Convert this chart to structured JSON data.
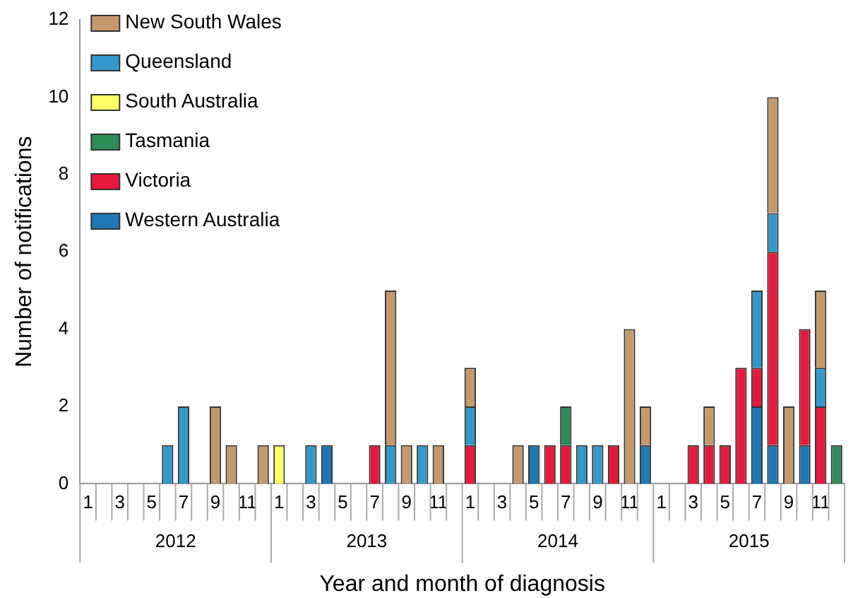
{
  "chart_data": {
    "type": "bar",
    "stacked": true,
    "xlabel": "Year and month of diagnosis",
    "ylabel": "Number of notifications",
    "categories": [
      "1",
      null,
      "3",
      null,
      "5",
      null,
      "7",
      null,
      "9",
      null,
      "11",
      null,
      "1",
      null,
      "3",
      null,
      "5",
      null,
      "7",
      null,
      "9",
      null,
      "11",
      null,
      "1",
      null,
      "3",
      null,
      "5",
      null,
      "7",
      null,
      "9",
      null,
      "11",
      null,
      "1",
      null,
      "3",
      null,
      "5",
      null,
      "7",
      null,
      "9",
      null,
      "11",
      null
    ],
    "annotations": [
      "2012",
      "2013",
      "2014",
      "2015"
    ],
    "series": [
      {
        "name": "Western Australia",
        "color": "#1f78b4",
        "values": [
          null,
          null,
          null,
          null,
          null,
          null,
          null,
          null,
          null,
          null,
          null,
          null,
          null,
          null,
          null,
          1,
          null,
          null,
          null,
          null,
          null,
          null,
          null,
          null,
          null,
          null,
          null,
          null,
          1,
          null,
          null,
          null,
          null,
          null,
          null,
          1,
          null,
          null,
          null,
          null,
          null,
          null,
          2,
          1,
          null,
          1,
          null,
          null
        ]
      },
      {
        "name": "Victoria",
        "color": "#e8183c",
        "values": [
          null,
          null,
          null,
          null,
          null,
          null,
          null,
          null,
          null,
          null,
          null,
          null,
          null,
          null,
          null,
          null,
          null,
          null,
          1,
          null,
          null,
          null,
          null,
          null,
          1,
          null,
          null,
          null,
          null,
          1,
          1,
          null,
          null,
          1,
          null,
          null,
          null,
          null,
          1,
          1,
          1,
          3,
          1,
          5,
          null,
          3,
          2,
          null
        ]
      },
      {
        "name": "Tasmania",
        "color": "#2e8b57",
        "values": [
          null,
          null,
          null,
          null,
          null,
          null,
          null,
          null,
          null,
          null,
          null,
          null,
          null,
          null,
          null,
          null,
          null,
          null,
          null,
          null,
          null,
          null,
          null,
          null,
          null,
          null,
          null,
          null,
          null,
          null,
          1,
          null,
          null,
          null,
          null,
          null,
          null,
          null,
          null,
          null,
          null,
          null,
          null,
          null,
          null,
          null,
          null,
          1
        ]
      },
      {
        "name": "South Australia",
        "color": "#ffff66",
        "values": [
          null,
          null,
          null,
          null,
          null,
          null,
          null,
          null,
          null,
          null,
          null,
          null,
          1,
          null,
          null,
          null,
          null,
          null,
          null,
          null,
          null,
          null,
          null,
          null,
          null,
          null,
          null,
          null,
          null,
          null,
          null,
          null,
          null,
          null,
          null,
          null,
          null,
          null,
          null,
          null,
          null,
          null,
          null,
          null,
          null,
          null,
          null,
          null
        ]
      },
      {
        "name": "Queensland",
        "color": "#3399cc",
        "values": [
          null,
          null,
          null,
          null,
          null,
          1,
          2,
          null,
          null,
          null,
          null,
          null,
          null,
          null,
          1,
          null,
          null,
          null,
          null,
          1,
          null,
          1,
          null,
          null,
          1,
          null,
          null,
          null,
          null,
          null,
          null,
          1,
          1,
          null,
          null,
          null,
          null,
          null,
          null,
          null,
          null,
          null,
          2,
          1,
          null,
          null,
          1,
          null
        ]
      },
      {
        "name": "New South Wales",
        "color": "#c49a6c",
        "values": [
          null,
          null,
          null,
          null,
          null,
          null,
          null,
          null,
          2,
          1,
          null,
          1,
          null,
          null,
          null,
          null,
          null,
          null,
          null,
          4,
          1,
          null,
          1,
          null,
          1,
          null,
          null,
          1,
          null,
          null,
          null,
          null,
          null,
          null,
          4,
          1,
          null,
          null,
          null,
          1,
          null,
          null,
          null,
          3,
          2,
          null,
          2,
          null
        ]
      }
    ],
    "ylim": [
      0,
      12
    ],
    "yticks": [
      0,
      2,
      4,
      6,
      8,
      10,
      12
    ],
    "grid": false,
    "legend": "top left"
  }
}
